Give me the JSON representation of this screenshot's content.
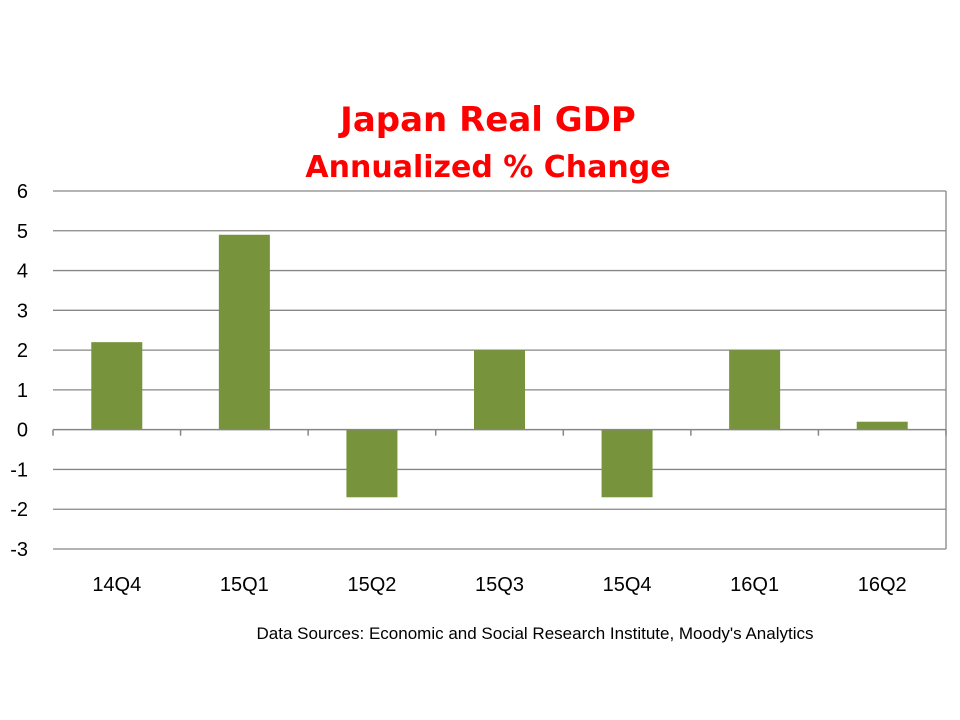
{
  "chart_data": {
    "type": "bar",
    "title": "Japan Real GDP",
    "subtitle": "Annualized % Change",
    "categories": [
      "14Q4",
      "15Q1",
      "15Q2",
      "15Q3",
      "15Q4",
      "16Q1",
      "16Q2"
    ],
    "values": [
      2.2,
      4.9,
      -1.7,
      2.0,
      -1.7,
      2.0,
      0.2
    ],
    "ylim": [
      -3,
      6
    ],
    "yticks": [
      "6",
      "5",
      "4",
      "3",
      "2",
      "1",
      "0",
      "-1",
      "-2",
      "-3"
    ],
    "xlabel": "",
    "ylabel": "",
    "grid": true,
    "legend": "none",
    "source": "Data Sources: Economic and Social Research Institute, Moody's Analytics"
  },
  "colors": {
    "title": "#ff0000",
    "bar": "#77933c",
    "grid": "#868686",
    "axis": "#868686"
  }
}
